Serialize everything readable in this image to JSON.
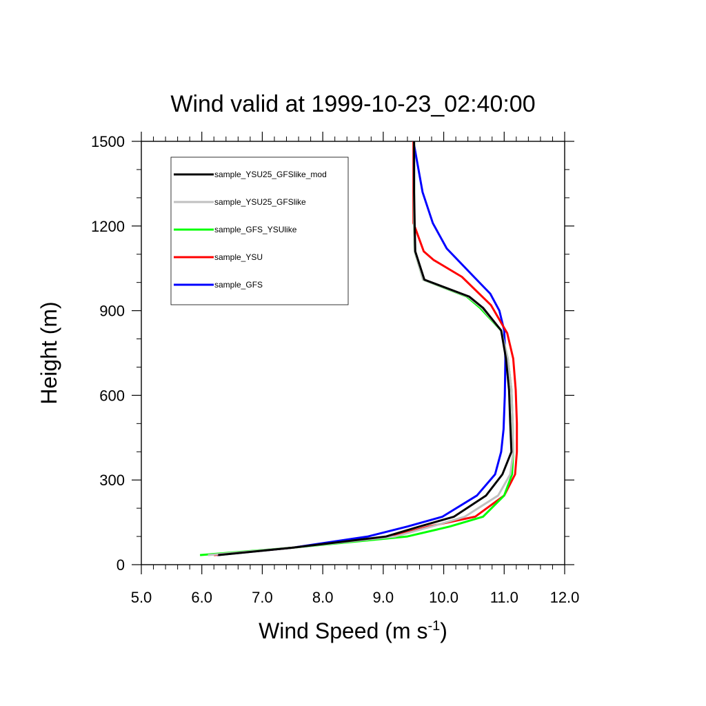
{
  "chart_data": {
    "type": "line",
    "title": "Wind valid at 1999-10-23_02:40:00",
    "xlabel": "Wind Speed (m s",
    "xlabel_sup": "-1",
    "xlabel_close": ")",
    "ylabel": "Height (m)",
    "xlim": [
      5.0,
      12.0
    ],
    "ylim": [
      0,
      1500
    ],
    "x_ticks": [
      "5.0",
      "6.0",
      "7.0",
      "8.0",
      "9.0",
      "10.0",
      "11.0",
      "12.0"
    ],
    "x_tick_values": [
      5,
      6,
      7,
      8,
      9,
      10,
      11,
      12
    ],
    "y_ticks": [
      "0",
      "300",
      "600",
      "900",
      "1200",
      "1500"
    ],
    "y_tick_values": [
      0,
      300,
      600,
      900,
      1200,
      1500
    ],
    "legend_position": "top-left",
    "series": [
      {
        "name": "sample_YSU25_GFSlike_mod",
        "color": "#000000",
        "x": [
          6.27,
          7.5,
          9.05,
          9.6,
          10.17,
          10.7,
          10.97,
          11.12,
          11.1,
          11.08,
          11.03,
          10.95,
          10.65,
          10.42,
          9.68,
          9.53,
          9.52,
          9.51,
          9.51,
          9.51
        ],
        "y": [
          34,
          60,
          100,
          135,
          170,
          245,
          320,
          400,
          500,
          620,
          730,
          830,
          910,
          950,
          1010,
          1110,
          1200,
          1320,
          1440,
          1500
        ]
      },
      {
        "name": "sample_YSU25_GFSlike",
        "color": "#c0c0c0",
        "x": [
          6.1,
          7.5,
          9.2,
          9.8,
          10.35,
          10.9,
          11.1,
          11.15,
          11.14,
          11.12,
          11.06,
          10.95,
          10.63,
          10.4,
          9.66,
          9.52,
          9.51,
          9.51,
          9.51,
          9.51
        ],
        "y": [
          34,
          60,
          100,
          135,
          170,
          245,
          320,
          400,
          500,
          620,
          730,
          830,
          910,
          950,
          1010,
          1110,
          1200,
          1320,
          1440,
          1500
        ]
      },
      {
        "name": "sample_GFS_YSUlike",
        "color": "#00ff00",
        "x": [
          5.97,
          7.5,
          9.4,
          10.1,
          10.65,
          11.0,
          11.13,
          11.15,
          11.14,
          11.12,
          11.06,
          10.95,
          10.6,
          10.38,
          9.66,
          9.52,
          9.51,
          9.51,
          9.51,
          9.51
        ],
        "y": [
          34,
          60,
          100,
          135,
          170,
          245,
          320,
          400,
          500,
          620,
          730,
          830,
          910,
          950,
          1010,
          1110,
          1200,
          1320,
          1440,
          1500
        ]
      },
      {
        "name": "sample_YSU",
        "color": "#ff0000",
        "x": [
          6.2,
          7.5,
          9.15,
          9.75,
          10.52,
          11.0,
          11.18,
          11.21,
          11.21,
          11.19,
          11.15,
          11.05,
          10.78,
          10.3,
          9.83,
          9.67,
          9.5,
          9.5,
          9.5,
          9.5
        ],
        "y": [
          34,
          60,
          100,
          135,
          170,
          245,
          320,
          400,
          500,
          620,
          730,
          820,
          920,
          1020,
          1080,
          1110,
          1210,
          1320,
          1440,
          1500
        ]
      },
      {
        "name": "sample_GFS",
        "color": "#0000ff",
        "x": [
          6.25,
          7.5,
          8.75,
          9.4,
          9.98,
          10.55,
          10.85,
          10.95,
          10.99,
          11.01,
          11.02,
          11.0,
          10.92,
          10.77,
          10.5,
          10.05,
          9.82,
          9.65,
          9.55,
          9.5
        ],
        "y": [
          34,
          60,
          100,
          135,
          170,
          245,
          320,
          400,
          480,
          600,
          730,
          830,
          900,
          960,
          1020,
          1120,
          1210,
          1320,
          1440,
          1500
        ]
      }
    ]
  }
}
